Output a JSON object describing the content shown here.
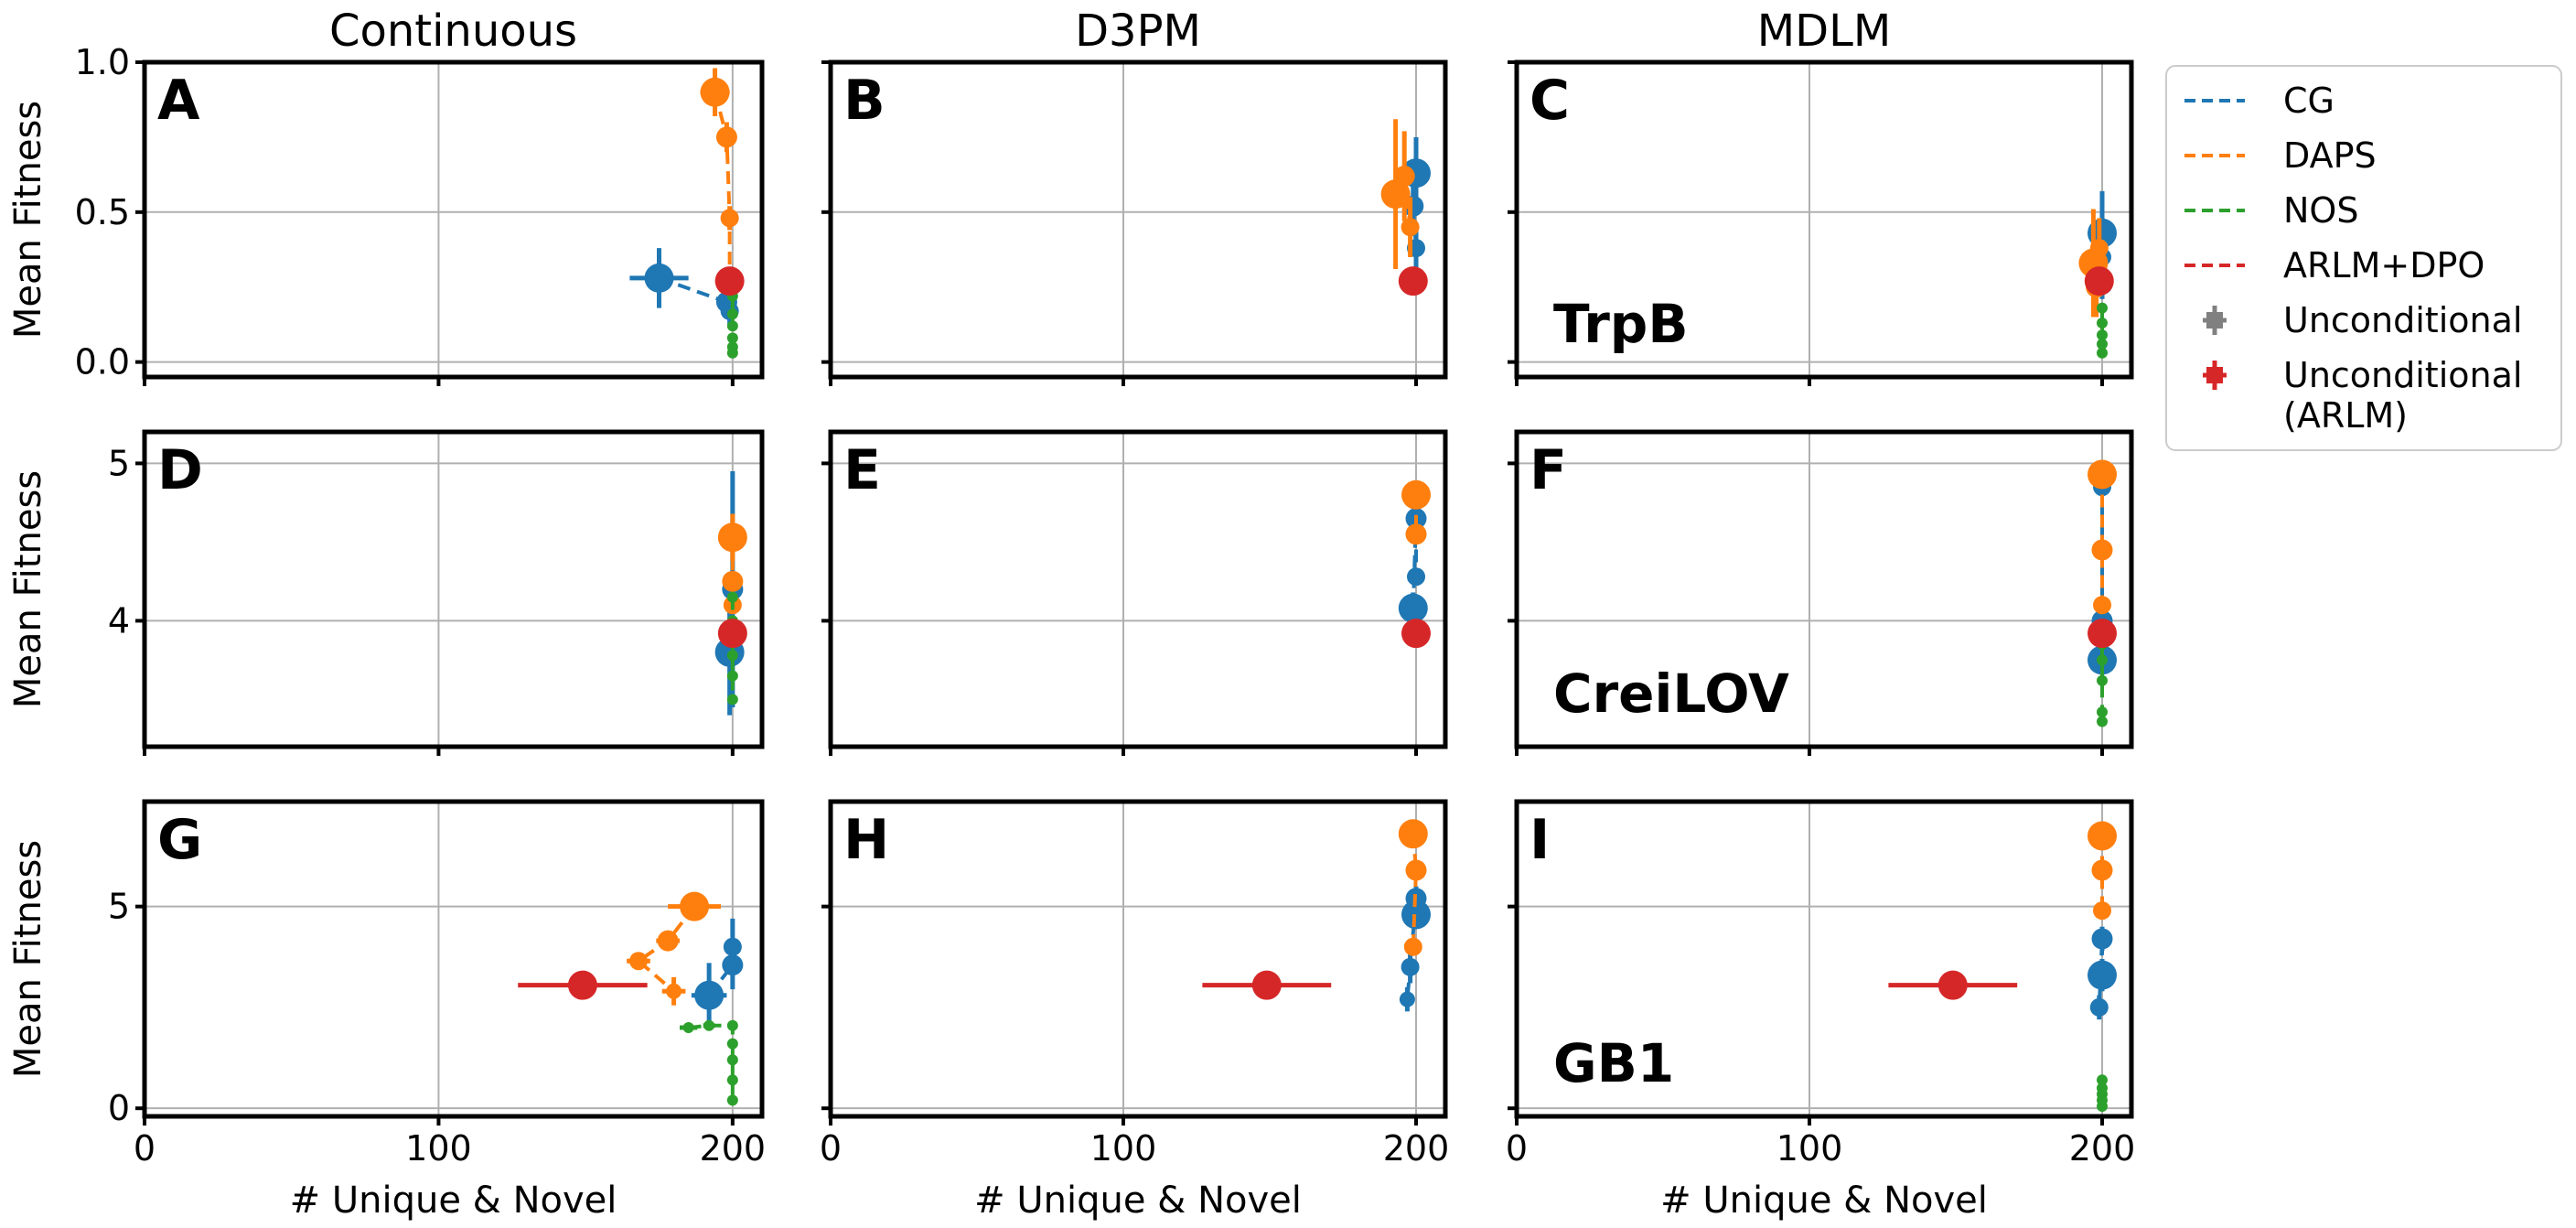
{
  "columns": [
    "Continuous",
    "D3PM",
    "MDLM"
  ],
  "rows": [
    {
      "ylabel": "Mean Fitness",
      "protein": "TrpB",
      "ylim": [
        -0.05,
        1.0
      ],
      "yticks": [
        "0.0",
        "0.5",
        "1.0"
      ],
      "ytick_values": [
        0.0,
        0.5,
        1.0
      ]
    },
    {
      "ylabel": "Mean Fitness",
      "protein": "CreiLOV",
      "ylim": [
        3.2,
        5.2
      ],
      "yticks": [
        "4",
        "5"
      ],
      "ytick_values": [
        4,
        5
      ]
    },
    {
      "ylabel": "Mean Fitness",
      "protein": "GB1",
      "ylim": [
        -0.2,
        7.6
      ],
      "yticks": [
        "0",
        "5"
      ],
      "ytick_values": [
        0,
        5
      ]
    }
  ],
  "xlabel": "# Unique & Novel",
  "xticks": [
    "0",
    "100",
    "200"
  ],
  "xtick_values": [
    0,
    100,
    200
  ],
  "xlim": [
    0,
    210
  ],
  "panel_letters": [
    "A",
    "B",
    "C",
    "D",
    "E",
    "F",
    "G",
    "H",
    "I"
  ],
  "colors": {
    "CG": "#1f77b4",
    "DAPS": "#ff7f0e",
    "NOS": "#2ca02c",
    "ARLM": "#d62728",
    "Unconditional": "#808080",
    "axis": "#000000",
    "grid": "#b0b0b0"
  },
  "legend": [
    {
      "label": "CG",
      "kind": "dash",
      "color": "#1f77b4"
    },
    {
      "label": "DAPS",
      "kind": "dash",
      "color": "#ff7f0e"
    },
    {
      "label": "NOS",
      "kind": "dash",
      "color": "#2ca02c"
    },
    {
      "label": "ARLM+DPO",
      "kind": "dash",
      "color": "#d62728"
    },
    {
      "label": "Unconditional",
      "kind": "cross",
      "color": "#808080"
    },
    {
      "label": "Unconditional\n(ARLM)",
      "kind": "cross",
      "color": "#d62728"
    }
  ],
  "chart_data": [
    {
      "panel": "A",
      "type": "scatter",
      "title": "Continuous",
      "ylabel": "Mean Fitness",
      "xlabel": "",
      "xlim": [
        0,
        210
      ],
      "ylim": [
        -0.05,
        1.0
      ],
      "series": [
        {
          "name": "CG",
          "color": "#1f77b4",
          "points": [
            [
              175,
              0.28,
              10,
              0.1
            ],
            [
              198,
              0.2,
              2,
              0.05
            ],
            [
              199,
              0.17,
              1,
              0.05
            ]
          ]
        },
        {
          "name": "DAPS",
          "color": "#ff7f0e",
          "points": [
            [
              194,
              0.9,
              5,
              0.08
            ],
            [
              198,
              0.75,
              1,
              0.05
            ],
            [
              199,
              0.48,
              1,
              0.04
            ],
            [
              199,
              0.27,
              1,
              0.03
            ]
          ]
        },
        {
          "name": "NOS",
          "color": "#2ca02c",
          "points": [
            [
              200,
              0.22,
              0,
              0
            ],
            [
              200,
              0.16,
              0,
              0
            ],
            [
              200,
              0.12,
              0,
              0
            ],
            [
              200,
              0.08,
              0,
              0
            ],
            [
              200,
              0.05,
              0,
              0
            ],
            [
              200,
              0.03,
              0,
              0
            ]
          ]
        },
        {
          "name": "Unconditional (ARLM)",
          "color": "#d62728",
          "points": [
            [
              199,
              0.27,
              0,
              0
            ]
          ]
        }
      ]
    },
    {
      "panel": "B",
      "type": "scatter",
      "title": "D3PM",
      "ylabel": "",
      "xlabel": "",
      "xlim": [
        0,
        210
      ],
      "ylim": [
        -0.05,
        1.0
      ],
      "series": [
        {
          "name": "CG",
          "color": "#1f77b4",
          "points": [
            [
              200,
              0.63,
              1,
              0.12
            ],
            [
              199,
              0.52,
              1,
              0.1
            ],
            [
              200,
              0.38,
              1,
              0.08
            ]
          ]
        },
        {
          "name": "DAPS",
          "color": "#ff7f0e",
          "points": [
            [
              193,
              0.56,
              3,
              0.25
            ],
            [
              196,
              0.62,
              2,
              0.15
            ],
            [
              198,
              0.45,
              1,
              0.1
            ]
          ]
        },
        {
          "name": "Unconditional (ARLM)",
          "color": "#d62728",
          "points": [
            [
              199,
              0.27,
              1,
              0.02
            ]
          ]
        }
      ]
    },
    {
      "panel": "C",
      "type": "scatter",
      "title": "MDLM",
      "ylabel": "",
      "xlabel": "",
      "xlim": [
        0,
        210
      ],
      "ylim": [
        -0.05,
        1.0
      ],
      "series": [
        {
          "name": "CG",
          "color": "#1f77b4",
          "points": [
            [
              200,
              0.43,
              0.5,
              0.14
            ],
            [
              200,
              0.26,
              1,
              0.05
            ],
            [
              200,
              0.35,
              0.5,
              0.05
            ]
          ]
        },
        {
          "name": "DAPS",
          "color": "#ff7f0e",
          "points": [
            [
              197,
              0.33,
              2,
              0.18
            ],
            [
              198,
              0.25,
              1,
              0.1
            ],
            [
              199,
              0.38,
              1,
              0.1
            ]
          ]
        },
        {
          "name": "NOS",
          "color": "#2ca02c",
          "points": [
            [
              200,
              0.18,
              0,
              0
            ],
            [
              200,
              0.13,
              0,
              0
            ],
            [
              200,
              0.09,
              0,
              0
            ],
            [
              200,
              0.06,
              0,
              0
            ],
            [
              200,
              0.03,
              0,
              0
            ]
          ]
        },
        {
          "name": "Unconditional (ARLM)",
          "color": "#d62728",
          "points": [
            [
              199,
              0.27,
              0.5,
              0.02
            ]
          ]
        }
      ]
    },
    {
      "panel": "D",
      "type": "scatter",
      "title": "",
      "ylabel": "Mean Fitness",
      "xlabel": "",
      "xlim": [
        0,
        210
      ],
      "ylim": [
        3.2,
        5.2
      ],
      "series": [
        {
          "name": "CG",
          "color": "#1f77b4",
          "points": [
            [
              199,
              3.8,
              1,
              0.4
            ],
            [
              200,
              4.2,
              0.5,
              0.75
            ]
          ]
        },
        {
          "name": "DAPS",
          "color": "#ff7f0e",
          "points": [
            [
              200,
              4.53,
              1,
              0.15
            ],
            [
              200,
              4.25,
              0.5,
              0.05
            ],
            [
              200,
              4.1,
              0.5,
              0.05
            ]
          ]
        },
        {
          "name": "NOS",
          "color": "#2ca02c",
          "points": [
            [
              200,
              4.15,
              0,
              0
            ],
            [
              200,
              4.0,
              0,
              0
            ],
            [
              200,
              3.9,
              0,
              0
            ],
            [
              200,
              3.78,
              0,
              0
            ],
            [
              200,
              3.65,
              0,
              0
            ],
            [
              200,
              3.5,
              0,
              0
            ]
          ]
        },
        {
          "name": "Unconditional (ARLM)",
          "color": "#d62728",
          "points": [
            [
              200,
              3.92,
              0,
              0
            ]
          ]
        }
      ]
    },
    {
      "panel": "E",
      "type": "scatter",
      "title": "",
      "ylabel": "",
      "xlabel": "",
      "xlim": [
        0,
        210
      ],
      "ylim": [
        3.2,
        5.2
      ],
      "series": [
        {
          "name": "CG",
          "color": "#1f77b4",
          "points": [
            [
              199,
              4.08,
              0.5,
              0.1
            ],
            [
              200,
              4.65,
              0.5,
              0.1
            ],
            [
              200,
              4.28,
              0.5,
              0.05
            ]
          ]
        },
        {
          "name": "DAPS",
          "color": "#ff7f0e",
          "points": [
            [
              200,
              4.8,
              0.5,
              0.08
            ],
            [
              200,
              4.55,
              0.5,
              0.05
            ]
          ]
        },
        {
          "name": "Unconditional (ARLM)",
          "color": "#d62728",
          "points": [
            [
              200,
              3.92,
              0.5,
              0.02
            ]
          ]
        }
      ]
    },
    {
      "panel": "F",
      "type": "scatter",
      "title": "",
      "ylabel": "",
      "xlabel": "",
      "xlim": [
        0,
        210
      ],
      "ylim": [
        3.2,
        5.2
      ],
      "series": [
        {
          "name": "CG",
          "color": "#1f77b4",
          "points": [
            [
              200,
              3.75,
              0.5,
              0.05
            ],
            [
              200,
              4.0,
              0.5,
              0.05
            ],
            [
              200,
              4.85,
              0.5,
              0.05
            ]
          ]
        },
        {
          "name": "DAPS",
          "color": "#ff7f0e",
          "points": [
            [
              200,
              4.93,
              0.5,
              0.03
            ],
            [
              200,
              4.45,
              0.5,
              0.05
            ],
            [
              200,
              4.1,
              0.5,
              0.05
            ]
          ]
        },
        {
          "name": "NOS",
          "color": "#2ca02c",
          "points": [
            [
              200,
              3.85,
              0,
              0
            ],
            [
              200,
              3.75,
              0,
              0
            ],
            [
              200,
              3.62,
              0,
              0
            ],
            [
              200,
              3.42,
              0,
              0
            ],
            [
              200,
              3.36,
              0,
              0
            ]
          ]
        },
        {
          "name": "Unconditional (ARLM)",
          "color": "#d62728",
          "points": [
            [
              200,
              3.92,
              0.5,
              0.02
            ]
          ]
        }
      ]
    },
    {
      "panel": "G",
      "type": "scatter",
      "title": "",
      "ylabel": "Mean Fitness",
      "xlabel": "# Unique & Novel",
      "xlim": [
        0,
        210
      ],
      "ylim": [
        -0.2,
        7.6
      ],
      "series": [
        {
          "name": "CG",
          "color": "#1f77b4",
          "points": [
            [
              192,
              2.8,
              6,
              0.8
            ],
            [
              200,
              3.55,
              2,
              0.6
            ],
            [
              200,
              4.0,
              1,
              0.7
            ]
          ]
        },
        {
          "name": "DAPS",
          "color": "#ff7f0e",
          "points": [
            [
              187,
              5.0,
              9,
              0.15
            ],
            [
              178,
              4.15,
              4,
              0.15
            ],
            [
              168,
              3.65,
              4,
              0.1
            ],
            [
              180,
              2.9,
              4,
              0.35
            ]
          ]
        },
        {
          "name": "NOS",
          "color": "#2ca02c",
          "points": [
            [
              185,
              2.0,
              3,
              0
            ],
            [
              192,
              2.05,
              2,
              0
            ],
            [
              200,
              2.05,
              1,
              0
            ],
            [
              200,
              1.6,
              0,
              0
            ],
            [
              200,
              1.2,
              0,
              0
            ],
            [
              200,
              0.7,
              0,
              0
            ],
            [
              200,
              0.2,
              0,
              0
            ]
          ]
        },
        {
          "name": "Unconditional (ARLM)",
          "color": "#d62728",
          "points": [
            [
              149,
              3.05,
              22,
              0.1
            ]
          ]
        }
      ]
    },
    {
      "panel": "H",
      "type": "scatter",
      "title": "",
      "ylabel": "",
      "xlabel": "# Unique & Novel",
      "xlim": [
        0,
        210
      ],
      "ylim": [
        -0.2,
        7.6
      ],
      "series": [
        {
          "name": "CG",
          "color": "#1f77b4",
          "points": [
            [
              200,
              4.8,
              1,
              0.3
            ],
            [
              200,
              5.2,
              0.5,
              0.3
            ],
            [
              198,
              3.5,
              0.5,
              0.4
            ],
            [
              197,
              2.7,
              0.5,
              0.3
            ]
          ]
        },
        {
          "name": "DAPS",
          "color": "#ff7f0e",
          "points": [
            [
              199,
              6.8,
              1,
              0.2
            ],
            [
              200,
              5.9,
              0.5,
              0.2
            ],
            [
              199,
              4.0,
              0.5,
              0.2
            ]
          ]
        },
        {
          "name": "Unconditional (ARLM)",
          "color": "#d62728",
          "points": [
            [
              149,
              3.05,
              22,
              0.1
            ]
          ]
        }
      ]
    },
    {
      "panel": "I",
      "type": "scatter",
      "title": "",
      "ylabel": "",
      "xlabel": "# Unique & Novel",
      "xlim": [
        0,
        210
      ],
      "ylim": [
        -0.2,
        7.6
      ],
      "series": [
        {
          "name": "CG",
          "color": "#1f77b4",
          "points": [
            [
              200,
              3.3,
              1,
              0.4
            ],
            [
              200,
              4.2,
              0.5,
              0.3
            ],
            [
              199,
              2.5,
              0.5,
              0.3
            ]
          ]
        },
        {
          "name": "DAPS",
          "color": "#ff7f0e",
          "points": [
            [
              200,
              6.75,
              1,
              0.25
            ],
            [
              200,
              5.9,
              0.5,
              0.2
            ],
            [
              200,
              4.9,
              0.5,
              0.2
            ]
          ]
        },
        {
          "name": "NOS",
          "color": "#2ca02c",
          "points": [
            [
              200,
              0.7,
              0,
              0
            ],
            [
              200,
              0.5,
              0,
              0
            ],
            [
              200,
              0.35,
              0,
              0
            ],
            [
              200,
              0.2,
              0,
              0
            ],
            [
              200,
              0.05,
              0,
              0
            ]
          ]
        },
        {
          "name": "Unconditional (ARLM)",
          "color": "#d62728",
          "points": [
            [
              149,
              3.05,
              22,
              0.1
            ]
          ]
        }
      ]
    }
  ]
}
